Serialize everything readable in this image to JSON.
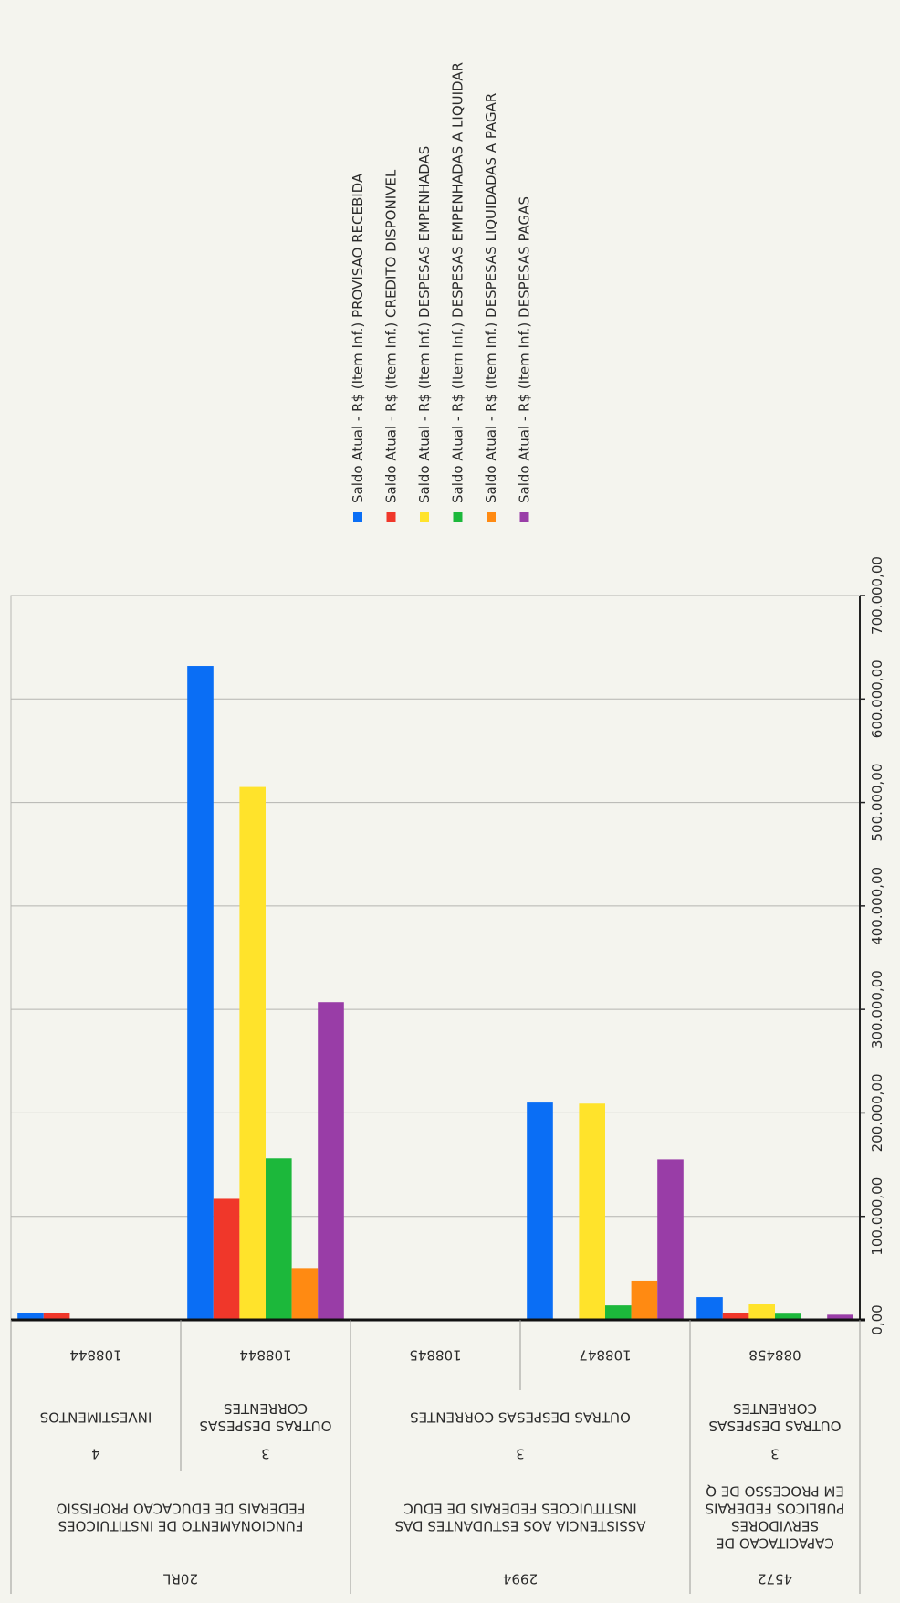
{
  "chart_data": {
    "type": "bar",
    "orientation": "horizontal-rotated",
    "value_axis": {
      "min": 0,
      "max": 700000,
      "step": 100000,
      "tick_labels": [
        "0,00",
        "100.000,00",
        "200.000,00",
        "300.000,00",
        "400.000,00",
        "500.000,00",
        "600.000,00",
        "700.000,00"
      ],
      "grid": true
    },
    "legend_position": "top",
    "series": [
      {
        "name": "Saldo Atual - R$ (Item Inf.) PROVISAO RECEBIDA",
        "color": "#0a6ef5",
        "values": [
          7000,
          632000,
          null,
          210000,
          22000
        ]
      },
      {
        "name": "Saldo Atual - R$ (Item Inf.) CREDITO DISPONIVEL",
        "color": "#f0372a",
        "values": [
          7000,
          117000,
          null,
          null,
          7000
        ]
      },
      {
        "name": "Saldo Atual - R$ (Item Inf.) DESPESAS EMPENHADAS",
        "color": "#ffe32b",
        "values": [
          null,
          515000,
          null,
          209000,
          15000
        ]
      },
      {
        "name": "Saldo Atual - R$ (Item Inf.) DESPESAS EMPENHADAS A LIQUIDAR",
        "color": "#1cb83b",
        "values": [
          null,
          156000,
          null,
          14000,
          6000
        ]
      },
      {
        "name": "Saldo Atual - R$ (Item Inf.) DESPESAS LIQUIDADAS A PAGAR",
        "color": "#ff8a12",
        "values": [
          null,
          50000,
          null,
          38000,
          null
        ]
      },
      {
        "name": "Saldo Atual - R$ (Item Inf.) DESPESAS PAGAS",
        "color": "#993da7",
        "values": [
          null,
          307000,
          null,
          155000,
          5000
        ]
      }
    ],
    "categories": [
      {
        "action": "20RL",
        "action_name": "FUNCIONAMENTO DE INSTITUICOES FEDERAIS DE EDUCACAO PROFISSIO",
        "nature": "4",
        "nature_name": "INVESTIMENTOS",
        "source": "108844"
      },
      {
        "action": "20RL",
        "action_name": "FUNCIONAMENTO DE INSTITUICOES FEDERAIS DE EDUCACAO PROFISSIO",
        "nature": "3",
        "nature_name": "OUTRAS DESPESAS CORRENTES",
        "source": "108844"
      },
      {
        "action": "2994",
        "action_name": "ASSISTENCIA AOS ESTUDANTES DAS INSTITUICOES FEDERAIS DE EDUC",
        "nature": "3",
        "nature_name": "OUTRAS DESPESAS CORRENTES",
        "source": "108845"
      },
      {
        "action": "2994",
        "action_name": "ASSISTENCIA AOS ESTUDANTES DAS INSTITUICOES FEDERAIS DE EDUC",
        "nature": "3",
        "nature_name": "OUTRAS DESPESAS CORRENTES",
        "source": "108847"
      },
      {
        "action": "4572",
        "action_name": "CAPACITACAO DE SERVIDORES PUBLICOS FEDERAIS EM PROCESSO DE Q",
        "nature": "3",
        "nature_name": "OUTRAS DESPESAS CORRENTES",
        "source": "088458"
      }
    ],
    "header_rows": {
      "action_groups": [
        {
          "code": "20RL",
          "name_lines": [
            "FUNCIONAMENTO DE INSTITUICOES",
            "FEDERAIS DE EDUCACAO PROFISSIO"
          ],
          "from": 0,
          "to": 1
        },
        {
          "code": "2994",
          "name_lines": [
            "ASSISTENCIA AOS ESTUDANTES DAS",
            "INSTITUICOES FEDERAIS DE EDUC"
          ],
          "from": 2,
          "to": 3
        },
        {
          "code": "4572",
          "name_lines": [
            "CAPACITACAO DE",
            "SERVIDORES",
            "PUBLICOS FEDERAIS",
            "EM PROCESSO DE Q"
          ],
          "from": 4,
          "to": 4
        }
      ],
      "nature_groups": [
        {
          "code": "4",
          "name_lines": [
            "INVESTIMENTOS"
          ],
          "from": 0,
          "to": 0
        },
        {
          "code": "3",
          "name_lines": [
            "OUTRAS DESPESAS",
            "CORRENTES"
          ],
          "from": 1,
          "to": 1
        },
        {
          "code": "3",
          "name_lines": [
            "OUTRAS DESPESAS CORRENTES"
          ],
          "from": 2,
          "to": 3
        },
        {
          "code": "3",
          "name_lines": [
            "OUTRAS DESPESAS",
            "CORRENTES"
          ],
          "from": 4,
          "to": 4
        }
      ],
      "sources": [
        "108844",
        "108844",
        "108845",
        "108847",
        "088458"
      ]
    }
  }
}
